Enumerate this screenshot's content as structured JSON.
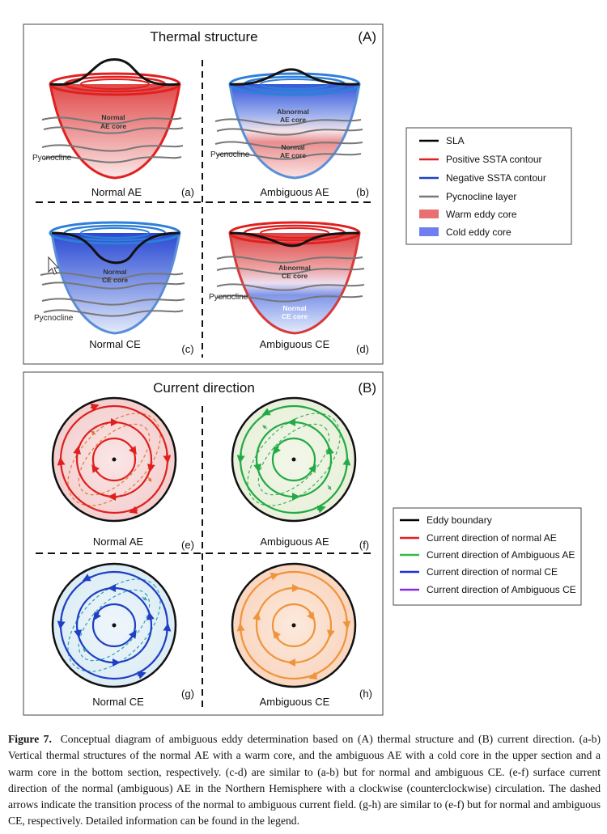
{
  "panel_a": {
    "title": "Thermal structure",
    "tag": "(A)",
    "cells": [
      {
        "label": "Normal AE",
        "letter": "(a)",
        "core_texts": [
          "Normal",
          "AE core"
        ],
        "pycnocline": "Pycnocline"
      },
      {
        "label": "Ambiguous AE",
        "letter": "(b)",
        "core_texts": [
          "Abnormal",
          "AE core",
          "Normal",
          "AE core"
        ],
        "pycnocline": "Pycnocline"
      },
      {
        "label": "Normal CE",
        "letter": "(c)",
        "core_texts": [
          "Normal",
          "CE core"
        ],
        "pycnocline": "Pycnocline"
      },
      {
        "label": "Ambiguous CE",
        "letter": "(d)",
        "core_texts": [
          "Abnormal",
          "CE core",
          "Normal",
          "CE core"
        ],
        "pycnocline": "Pycnocline"
      }
    ]
  },
  "panel_b": {
    "title": "Current direction",
    "tag": "(B)",
    "cells": [
      {
        "label": "Normal AE",
        "letter": "(e)"
      },
      {
        "label": "Ambiguous AE",
        "letter": "(f)"
      },
      {
        "label": "Normal CE",
        "letter": "(g)"
      },
      {
        "label": "Ambiguous CE",
        "letter": "(h)"
      }
    ]
  },
  "legend_a": [
    {
      "label": "SLA",
      "color": "#000000",
      "kind": "line"
    },
    {
      "label": "Positive SSTA contour",
      "color": "#e02020",
      "kind": "line"
    },
    {
      "label": "Negative SSTA contour",
      "color": "#2040c8",
      "kind": "line"
    },
    {
      "label": "Pycnocline layer",
      "color": "#777777",
      "kind": "line"
    },
    {
      "label": "Warm eddy core",
      "color": "#e87070",
      "kind": "patch"
    },
    {
      "label": "Cold eddy core",
      "color": "#6f7ff0",
      "kind": "patch"
    }
  ],
  "legend_b": [
    {
      "label": "Eddy boundary",
      "color": "#000000"
    },
    {
      "label": "Current direction of normal AE",
      "color": "#e02020"
    },
    {
      "label": "Current direction of Ambiguous AE",
      "color": "#33bb44"
    },
    {
      "label": "Current direction of normal CE",
      "color": "#2030d0"
    },
    {
      "label": "Current direction of Ambiguous CE",
      "color": "#8a2be2"
    }
  ],
  "caption": {
    "label": "Figure 7.",
    "text": "Conceptual diagram of ambiguous eddy determination based on (A) thermal structure and (B) current direction. (a-b) Vertical thermal structures of the normal AE with a warm core, and the ambiguous AE with a cold core in the upper section and a warm core in the bottom section, respectively. (c-d) are similar to (a-b) but for normal and ambiguous CE. (e-f) surface current direction of the normal (ambiguous) AE in the Northern Hemisphere with a clockwise (counterclockwise) circulation. The dashed arrows indicate the transition process of the normal to ambiguous current field. (g-h) are similar to (e-f) but for normal and ambiguous CE, respectively. Detailed information can be found in the legend."
  }
}
